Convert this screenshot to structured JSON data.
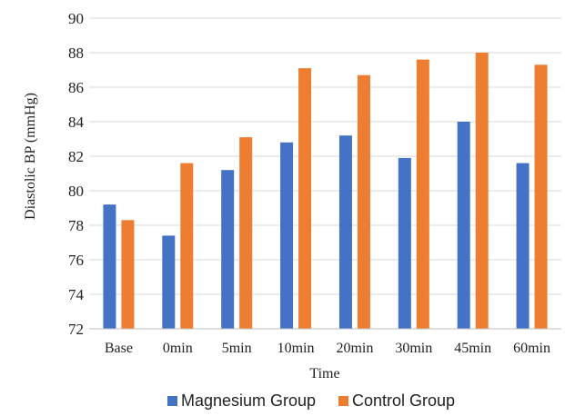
{
  "chart_data": {
    "type": "bar",
    "categories": [
      "Base",
      "0min",
      "5min",
      "10min",
      "20min",
      "30min",
      "45min",
      "60min"
    ],
    "series": [
      {
        "name": "Magnesium Group",
        "color": "#4472C4",
        "values": [
          79.2,
          77.4,
          81.2,
          82.8,
          83.2,
          81.9,
          84.0,
          81.6
        ]
      },
      {
        "name": "Control Group",
        "color": "#ED7D31",
        "values": [
          78.3,
          81.6,
          83.1,
          87.1,
          86.7,
          87.6,
          88.0,
          87.3
        ]
      }
    ],
    "xlabel": "Time",
    "ylabel": "Diastolic BP (mmHg)",
    "ylim": [
      72,
      90
    ],
    "yticks": [
      72,
      74,
      76,
      78,
      80,
      82,
      84,
      86,
      88,
      90
    ],
    "grid": true,
    "legend_position": "bottom"
  }
}
